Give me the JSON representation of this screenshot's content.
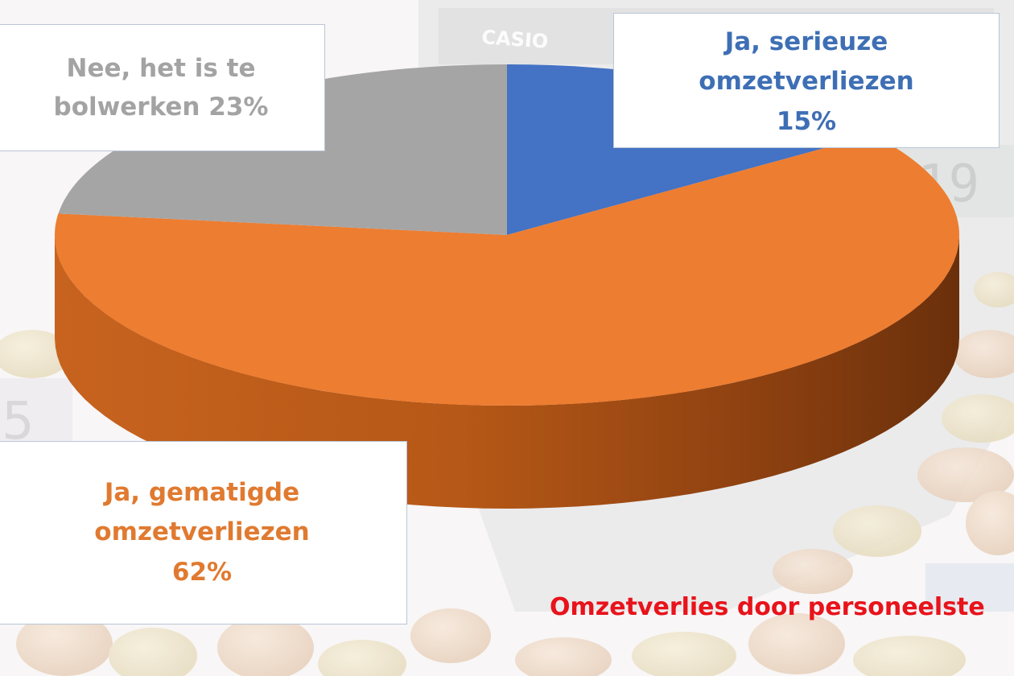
{
  "chart_data": {
    "type": "pie",
    "style": "3d",
    "categories": [
      "Ja, serieuze omzetverliezen",
      "Ja, gematigde omzetverliezen",
      "Nee, het is te bolwerken"
    ],
    "values": [
      15,
      62,
      23
    ],
    "value_labels": [
      "15%",
      "62%",
      "23%"
    ],
    "colors": [
      "#4472c4",
      "#ed7d31",
      "#a5a5a5"
    ],
    "labels": {
      "serious": {
        "lines": [
          "Ja, serieuze",
          "omzetverliezen",
          "15%"
        ],
        "color": "#3e6fb5"
      },
      "moderate": {
        "lines": [
          "Ja, gematigde",
          "omzetverliezen",
          "62%"
        ],
        "color": "#e07a30"
      },
      "none": {
        "lines": [
          "Nee, het is te",
          "bolwerken 23%"
        ],
        "color": "#a3a3a3"
      }
    },
    "title": "Omzetverlies door personeelste",
    "title_color": "#e8131b",
    "background": "faded photo of calculator and euro coins",
    "background_text": "CASIO"
  }
}
